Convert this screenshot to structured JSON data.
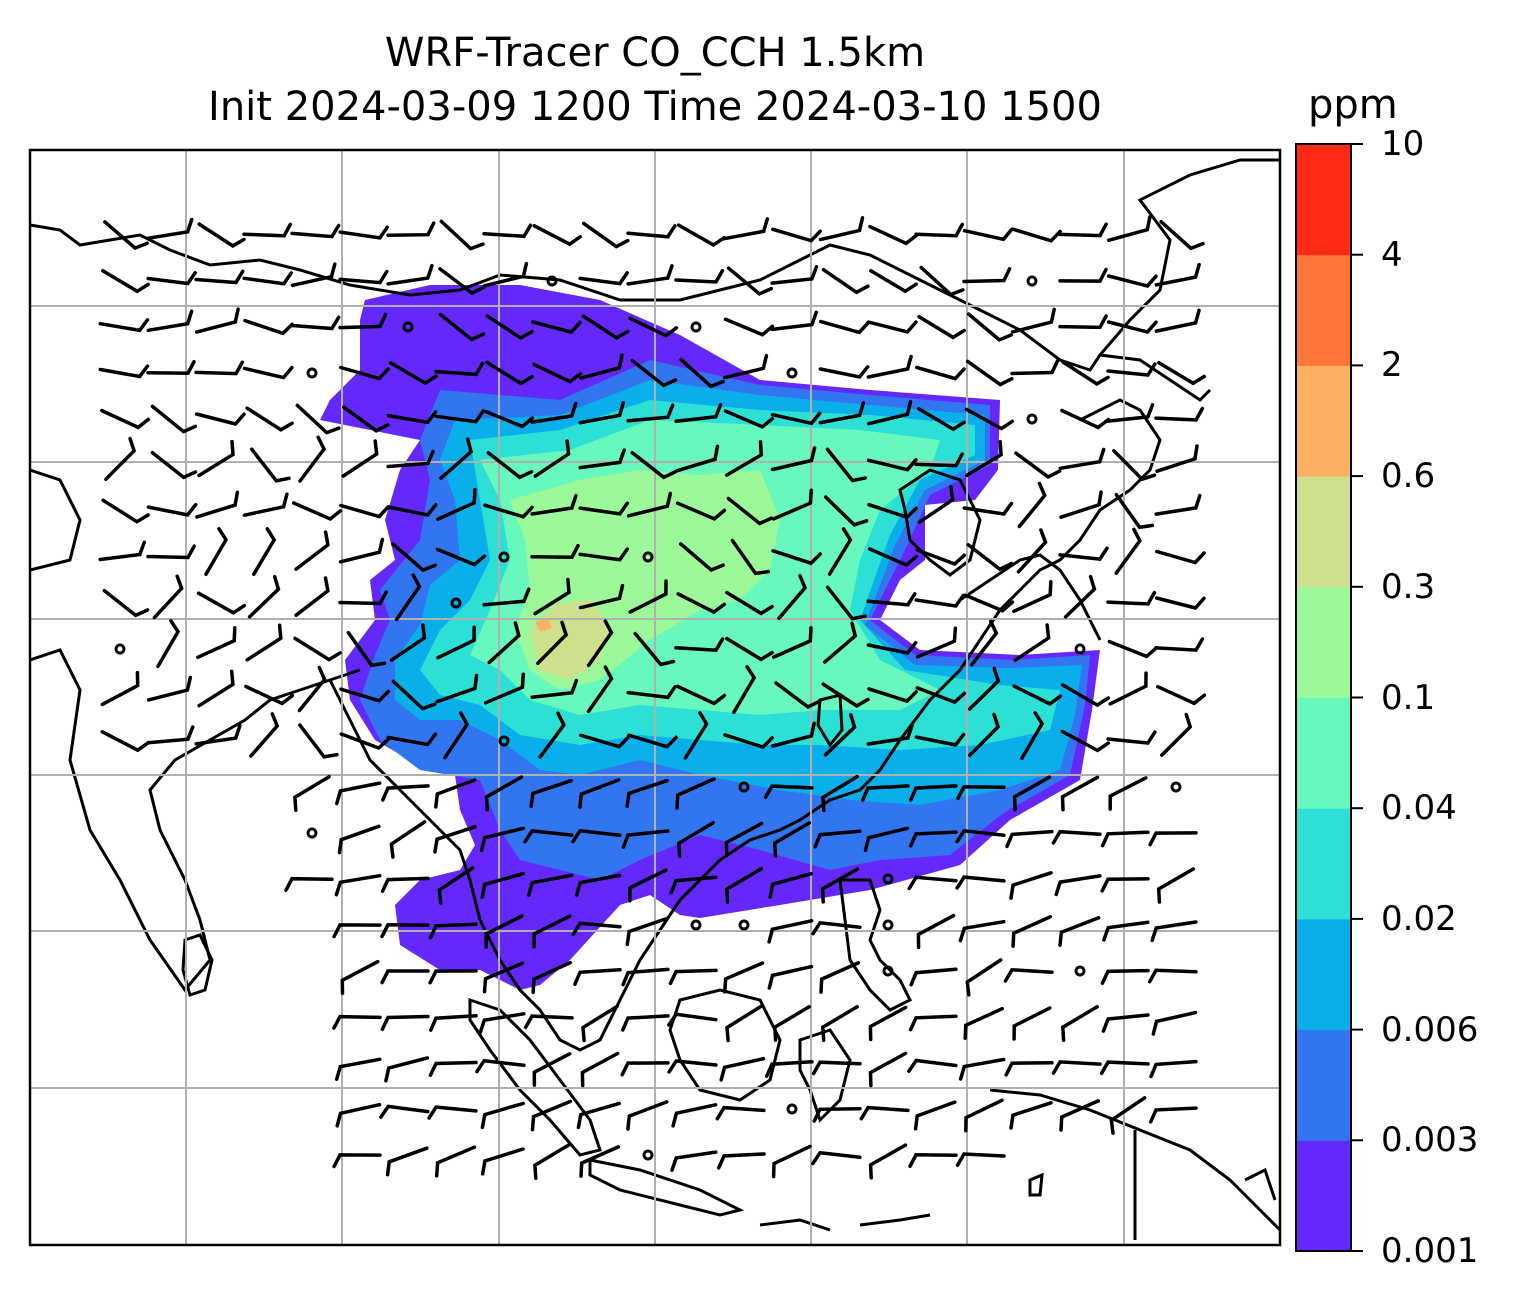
{
  "title": {
    "line1": "WRF-Tracer CO_CCH 1.5km",
    "line2": "Init 2024-03-09 1200 Time 2024-03-10 1500"
  },
  "colorbar": {
    "unit": "ppm",
    "ticks": [
      "0.001",
      "0.003",
      "0.006",
      "0.02",
      "0.04",
      "0.1",
      "0.3",
      "0.6",
      "2",
      "4",
      "10"
    ],
    "colors": [
      "#6428fa",
      "#3275f0",
      "#0aaeea",
      "#2de0d5",
      "#68f7bc",
      "#9cf99a",
      "#cfe08c",
      "#fdb064",
      "#ff7638",
      "#ff2b17"
    ]
  },
  "map": {
    "land_outline_color": "#000000",
    "gridline_color": "#b0b0b0",
    "wind_barb_color": "#000000"
  }
}
